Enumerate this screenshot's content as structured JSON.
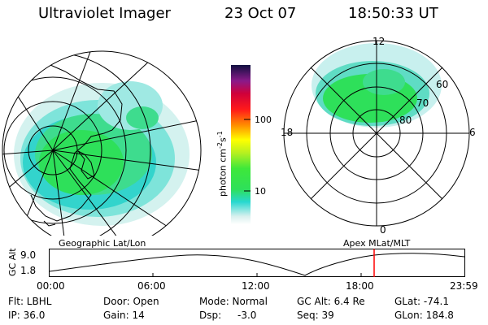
{
  "header": {
    "title": "Ultraviolet Imager",
    "date": "23 Oct 07",
    "time": "18:50:33 UT"
  },
  "geo_panel": {
    "caption": "Geographic Lat/Lon"
  },
  "colorbar": {
    "unit_label": "photon cm",
    "unit_exp1": "-2",
    "unit_mid": "s",
    "unit_exp2": "-1",
    "tick_labels": [
      "100",
      "10"
    ]
  },
  "polar_panel": {
    "caption": "Apex MLat/MLT",
    "mlt_labels": [
      "12",
      "18",
      "6",
      "0"
    ],
    "lat_labels": [
      "60",
      "70",
      "80"
    ]
  },
  "orbit_plot": {
    "ylabel": "GC Alt",
    "y_ticks": [
      "9.0",
      "1.8"
    ],
    "x_ticks": [
      "00:00",
      "06:00",
      "12:00",
      "18:00",
      "23:59"
    ]
  },
  "footer": {
    "row1": [
      "Flt: LBHL",
      "Door: Open",
      "Mode: Normal",
      "GC Alt: 6.4 Re",
      "GLat: -74.1"
    ],
    "row2": [
      "IP: 36.0",
      "Gain: 14",
      "Dsp:",
      "-3.0",
      "Seq: 39",
      "GLon: 184.8"
    ]
  },
  "colors": {
    "aurora_green": "#2ee05a",
    "aurora_cyan": "#28d8d0",
    "aurora_pale": "#c8f0ee",
    "marker_red": "#ff0000"
  }
}
